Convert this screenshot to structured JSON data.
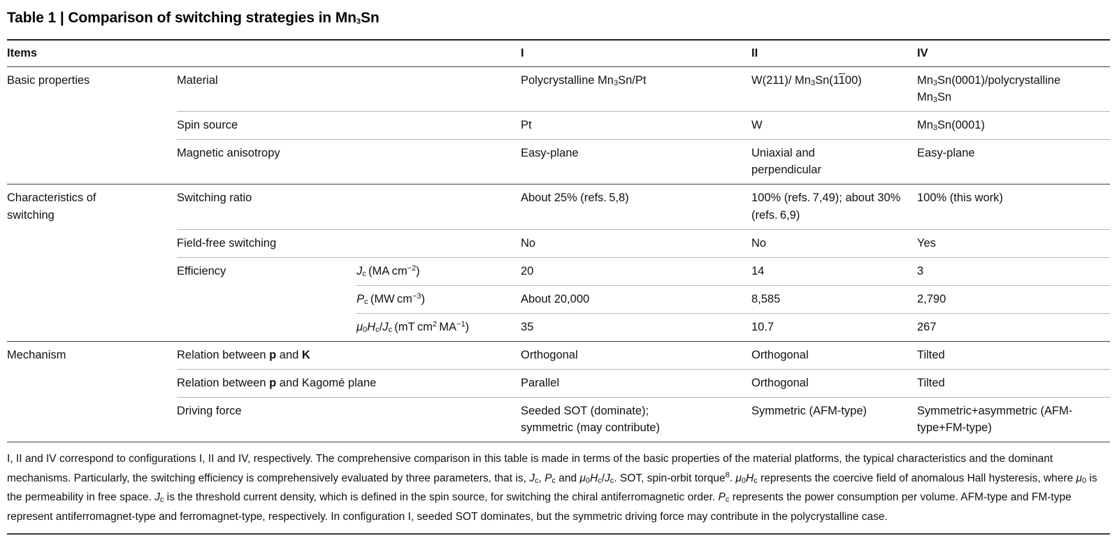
{
  "colors": {
    "text": "#111111",
    "rule_heavy": "#1f1f1f",
    "rule_dark": "#3d3d3d",
    "rule_light": "#b5b5b5",
    "bg": "#ffffff"
  },
  "table": {
    "title": "Table 1 | Comparison of switching strategies in Mn{_:3}Sn",
    "header": {
      "items_label": "Items",
      "columns": [
        "I",
        "II",
        "IV"
      ]
    },
    "sections": [
      {
        "group": "Basic properties",
        "rows": [
          {
            "label": "Material",
            "values": [
              "Polycrystalline Mn{_:3}Sn/Pt",
              "W(211)/ Mn{_:3}Sn(1{o:1}00)",
              "Mn{_:3}Sn(0001)/polycrystalline Mn{_:3}Sn"
            ]
          },
          {
            "label": "Spin source",
            "values": [
              "Pt",
              "W",
              "Mn{_:3}Sn(0001)"
            ]
          },
          {
            "label": "Magnetic anisotropy",
            "values": [
              "Easy-plane",
              "Uniaxial and perpendicular",
              "Easy-plane"
            ]
          }
        ]
      },
      {
        "group": "Characteristics of switching",
        "rows": [
          {
            "label": "Switching ratio",
            "values": [
              "About 25% (refs. 5,8)",
              "100% (refs. 7,49); about 30% (refs. 6,9)",
              "100% (this work)"
            ]
          },
          {
            "label": "Field-free switching",
            "values": [
              "No",
              "No",
              "Yes"
            ]
          },
          {
            "label": "Efficiency",
            "subrows": [
              {
                "param": "{i:J}{_:c} (MA cm{^:−2})",
                "values": [
                  "20",
                  "14",
                  "3"
                ]
              },
              {
                "param": "{i:P}{_:c} (MW cm{^:−3})",
                "values": [
                  "About 20,000",
                  "8,585",
                  "2,790"
                ]
              },
              {
                "param": "{i:μ}{_:0}{i:H}{_:c}/{i:J}{_:c} (mT cm{^:2} MA{^:−1})",
                "values": [
                  "35",
                  "10.7",
                  "267"
                ]
              }
            ]
          }
        ]
      },
      {
        "group": "Mechanism",
        "rows": [
          {
            "label": "Relation between {b:p} and {b:K}",
            "values": [
              "Orthogonal",
              "Orthogonal",
              "Tilted"
            ]
          },
          {
            "label": "Relation between {b:p} and Kagomé plane",
            "values": [
              "Parallel",
              "Orthogonal",
              "Tilted"
            ]
          },
          {
            "label": "Driving force",
            "values": [
              "Seeded SOT (dominate); symmetric (may contribute)",
              "Symmetric (AFM-type)",
              "Symmetric+asymmetric (AFM-type+FM-type)"
            ]
          }
        ]
      }
    ],
    "footnote": "I, II and IV correspond to configurations I, II and IV, respectively. The comprehensive comparison in this table is made in terms of the basic properties of the material platforms, the typical characteristics and the dominant mechanisms. Particularly, the switching efficiency is comprehensively evaluated by three parameters, that is, {i:J}{_:c}, {i:P}{_:c} and {i:μ}{_:0}{i:H}{_:c}/{i:J}{_:c}. SOT, spin-orbit torque{^:8}. {i:μ}{_:0}{i:H}{_:c} represents the coercive field of anomalous Hall hysteresis, where {i:μ}{_:0} is the permeability in free space. {i:J}{_:c} is the threshold current density, which is defined in the spin source, for switching the chiral antiferromagnetic order. {i:P}{_:c} represents the power consumption per volume. AFM-type and FM-type represent antiferromagnet-type and ferromagnet-type, respectively. In configuration I, seeded SOT dominates, but the symmetric driving force may contribute in the polycrystalline case."
  }
}
